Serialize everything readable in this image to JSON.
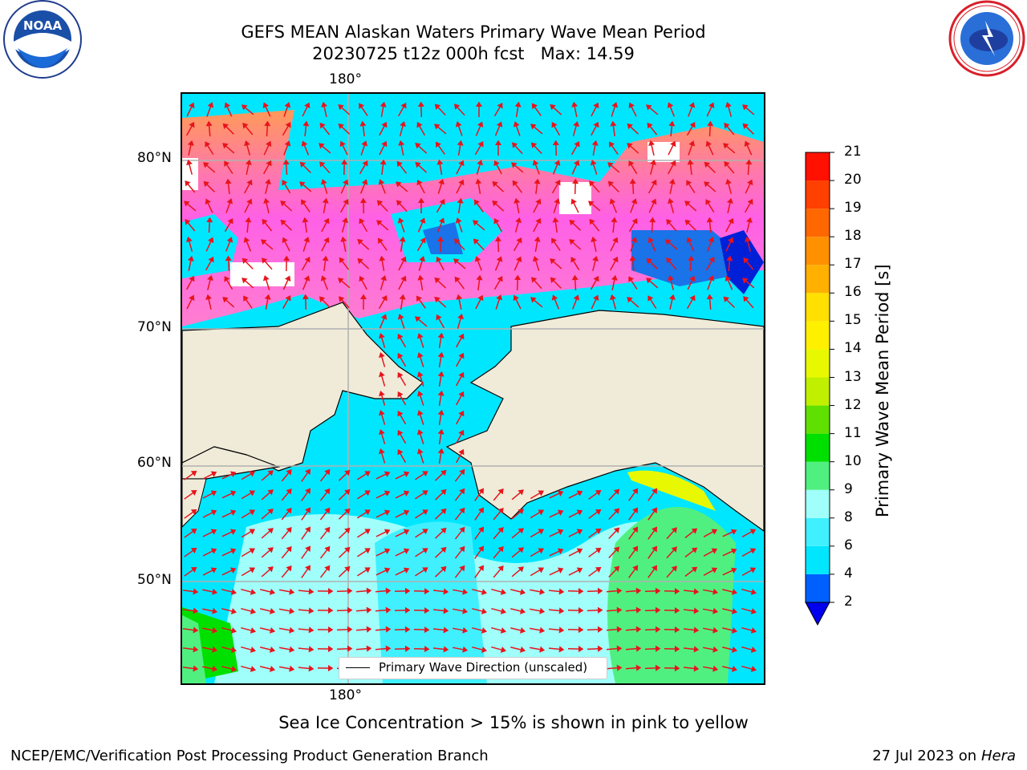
{
  "header": {
    "title_line1": "GEFS MEAN Alaskan Waters Primary Wave Mean Period",
    "title_line2": "20230725 t12z 000h fcst   Max: 14.59"
  },
  "logos": {
    "left": {
      "icon": "noaa-logo",
      "text": "NOAA"
    },
    "right": {
      "icon": "national-weather-service-logo",
      "text": "NATIONAL WEATHER SERVICE"
    }
  },
  "map": {
    "lon_label_top": "180°",
    "lon_label_bottom": "180°",
    "lat_labels": [
      "80°N",
      "70°N",
      "60°N",
      "50°N"
    ],
    "legend_label": "Primary Wave Direction (unscaled)",
    "colors": {
      "land": "#efebd8",
      "grid": "#b0b0b0",
      "arrow": "#e8141c",
      "ice_pink": "#ff5fe8",
      "ice_orange": "#ffa060"
    }
  },
  "colorbar": {
    "label": "Primary Wave Mean Period [s]",
    "ticks": [
      "21",
      "20",
      "19",
      "18",
      "17",
      "16",
      "15",
      "14",
      "13",
      "12",
      "11",
      "10",
      "9",
      "8",
      "6",
      "4",
      "2"
    ],
    "bins": [
      {
        "min": 2,
        "max": 4,
        "color": "#0060ff"
      },
      {
        "min": 4,
        "max": 6,
        "color": "#00e6ff"
      },
      {
        "min": 6,
        "max": 8,
        "color": "#40f0ff"
      },
      {
        "min": 8,
        "max": 9,
        "color": "#a0fffa"
      },
      {
        "min": 9,
        "max": 10,
        "color": "#50f080"
      },
      {
        "min": 10,
        "max": 11,
        "color": "#00e000"
      },
      {
        "min": 11,
        "max": 12,
        "color": "#60e000"
      },
      {
        "min": 12,
        "max": 13,
        "color": "#c0f000"
      },
      {
        "min": 13,
        "max": 14,
        "color": "#e8f800"
      },
      {
        "min": 14,
        "max": 15,
        "color": "#fff000"
      },
      {
        "min": 15,
        "max": 16,
        "color": "#ffe000"
      },
      {
        "min": 16,
        "max": 17,
        "color": "#ffb000"
      },
      {
        "min": 17,
        "max": 18,
        "color": "#ff9000"
      },
      {
        "min": 18,
        "max": 19,
        "color": "#ff6800"
      },
      {
        "min": 19,
        "max": 20,
        "color": "#ff4000"
      },
      {
        "min": 20,
        "max": 21,
        "color": "#ff1000"
      }
    ],
    "under_color": "#0000ee"
  },
  "caption": "Sea Ice Concentration > 15% is shown in pink to yellow",
  "footer": {
    "left": "NCEP/EMC/Verification Post Processing Product Generation Branch",
    "right_date": "27 Jul 2023 on ",
    "right_host": "Hera"
  }
}
